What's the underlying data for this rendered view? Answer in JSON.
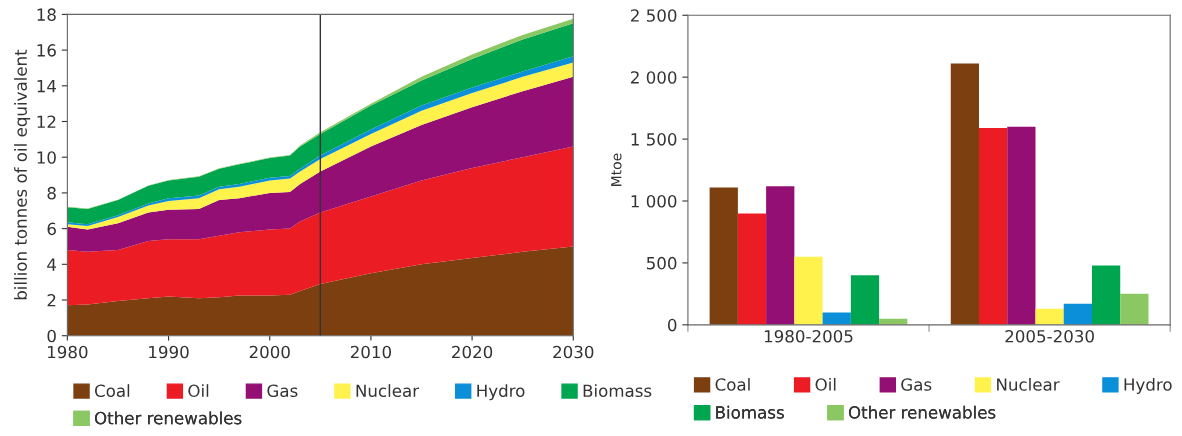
{
  "chart_data": [
    {
      "type": "area",
      "stacked": true,
      "ylabel": "billion tonnes of oil equivalent",
      "x": [
        1980,
        1982,
        1985,
        1988,
        1990,
        1993,
        1995,
        1997,
        2000,
        2002,
        2003,
        2005,
        2010,
        2015,
        2020,
        2025,
        2030
      ],
      "series": [
        {
          "name": "Coal",
          "color": "#7b3f10",
          "values": [
            1.7,
            1.75,
            1.95,
            2.1,
            2.2,
            2.1,
            2.15,
            2.25,
            2.25,
            2.3,
            2.5,
            2.9,
            3.5,
            4.0,
            4.35,
            4.7,
            5.0
          ]
        },
        {
          "name": "Oil",
          "color": "#ec1c24",
          "values": [
            3.1,
            2.95,
            2.85,
            3.2,
            3.2,
            3.3,
            3.45,
            3.55,
            3.7,
            3.7,
            3.9,
            4.0,
            4.3,
            4.7,
            5.05,
            5.3,
            5.6
          ]
        },
        {
          "name": "Gas",
          "color": "#940f74",
          "values": [
            1.3,
            1.25,
            1.5,
            1.6,
            1.65,
            1.7,
            2.0,
            1.9,
            2.05,
            2.05,
            2.1,
            2.3,
            2.8,
            3.1,
            3.4,
            3.7,
            3.9
          ]
        },
        {
          "name": "Nuclear",
          "color": "#fff24d",
          "values": [
            0.15,
            0.2,
            0.35,
            0.4,
            0.5,
            0.6,
            0.6,
            0.65,
            0.7,
            0.75,
            0.7,
            0.7,
            0.7,
            0.8,
            0.8,
            0.8,
            0.8
          ]
        },
        {
          "name": "Hydro",
          "color": "#0b8fd8",
          "values": [
            0.1,
            0.1,
            0.1,
            0.1,
            0.15,
            0.15,
            0.15,
            0.15,
            0.15,
            0.15,
            0.15,
            0.2,
            0.25,
            0.3,
            0.3,
            0.3,
            0.35
          ]
        },
        {
          "name": "Biomass",
          "color": "#00a550",
          "values": [
            0.85,
            0.85,
            0.85,
            1.0,
            1.0,
            1.05,
            1.0,
            1.1,
            1.1,
            1.15,
            1.25,
            1.2,
            1.35,
            1.4,
            1.6,
            1.8,
            1.85
          ]
        },
        {
          "name": "Other renewables",
          "color": "#8bc863",
          "values": [
            0.02,
            0.02,
            0.02,
            0.02,
            0.02,
            0.03,
            0.03,
            0.03,
            0.03,
            0.03,
            0.05,
            0.1,
            0.1,
            0.2,
            0.25,
            0.25,
            0.25
          ]
        }
      ],
      "xlim": [
        1980,
        2030
      ],
      "xticks": [
        1980,
        1990,
        2000,
        2010,
        2020,
        2030
      ],
      "ylim": [
        0,
        18
      ],
      "yticks": [
        0,
        2,
        4,
        6,
        8,
        10,
        12,
        14,
        16,
        18
      ],
      "ref_lines": [
        {
          "axis": "x",
          "value": 2005,
          "color": "#333333"
        }
      ],
      "grid": false,
      "legend": "bottom"
    },
    {
      "type": "bar",
      "ylabel": "Mtoe",
      "categories": [
        "1980-2005",
        "2005-2030"
      ],
      "series": [
        {
          "name": "Coal",
          "color": "#7b3f10",
          "values": [
            1110,
            2110
          ]
        },
        {
          "name": "Oil",
          "color": "#ec1c24",
          "values": [
            900,
            1590
          ]
        },
        {
          "name": "Gas",
          "color": "#940f74",
          "values": [
            1120,
            1600
          ]
        },
        {
          "name": "Nuclear",
          "color": "#fff24d",
          "values": [
            550,
            130
          ]
        },
        {
          "name": "Hydro",
          "color": "#0b8fd8",
          "values": [
            100,
            170
          ]
        },
        {
          "name": "Biomass",
          "color": "#00a550",
          "values": [
            400,
            480
          ]
        },
        {
          "name": "Other renewables",
          "color": "#8bc863",
          "values": [
            50,
            250
          ]
        }
      ],
      "ylim": [
        0,
        2500
      ],
      "yticks": [
        0,
        500,
        {
          "value": 1000,
          "label": "1 000"
        },
        {
          "value": 1500,
          "label": "1 500"
        },
        {
          "value": 2000,
          "label": "2 000"
        },
        {
          "value": 2500,
          "label": "2 500"
        }
      ],
      "grid": false,
      "legend": "bottom"
    }
  ]
}
